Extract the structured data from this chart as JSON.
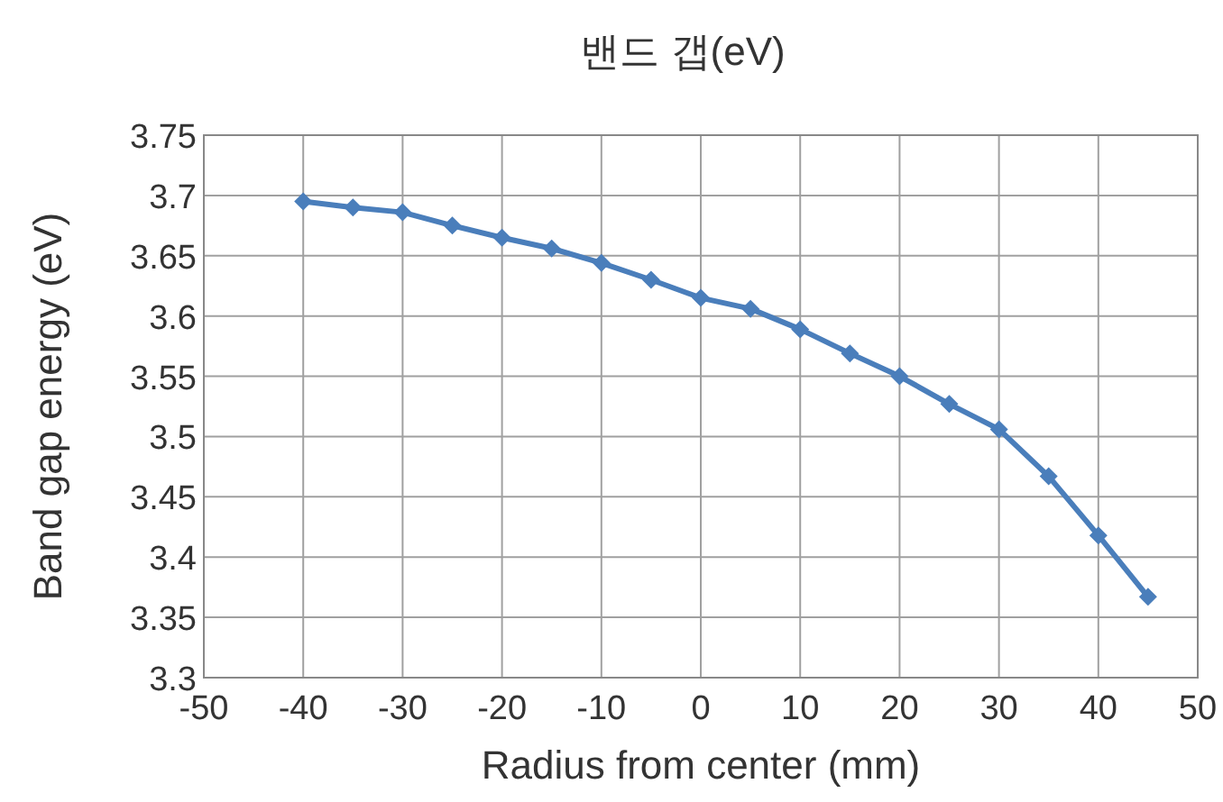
{
  "chart_data": {
    "type": "line",
    "title": "밴드 갭(eV)",
    "xlabel": "Radius from center (mm)",
    "ylabel": "Band gap energy (eV)",
    "x": [
      -40,
      -35,
      -30,
      -25,
      -20,
      -15,
      -10,
      -5,
      0,
      5,
      10,
      15,
      20,
      25,
      30,
      35,
      40,
      45
    ],
    "series": [
      {
        "color": "#4a7ebb",
        "values": [
          3.695,
          3.69,
          3.686,
          3.675,
          3.665,
          3.656,
          3.644,
          3.63,
          3.615,
          3.606,
          3.589,
          3.569,
          3.55,
          3.527,
          3.506,
          3.467,
          3.418,
          3.367
        ]
      }
    ],
    "xlim": [
      -50,
      50
    ],
    "xticks": [
      -50,
      -40,
      -30,
      -20,
      -10,
      0,
      10,
      20,
      30,
      40,
      50
    ],
    "ylim": [
      3.3,
      3.75
    ],
    "yticks": [
      3.3,
      3.35,
      3.4,
      3.45,
      3.5,
      3.55,
      3.6,
      3.65,
      3.7,
      3.75
    ],
    "grid": true,
    "marker": "diamond",
    "line_style": "solid"
  }
}
